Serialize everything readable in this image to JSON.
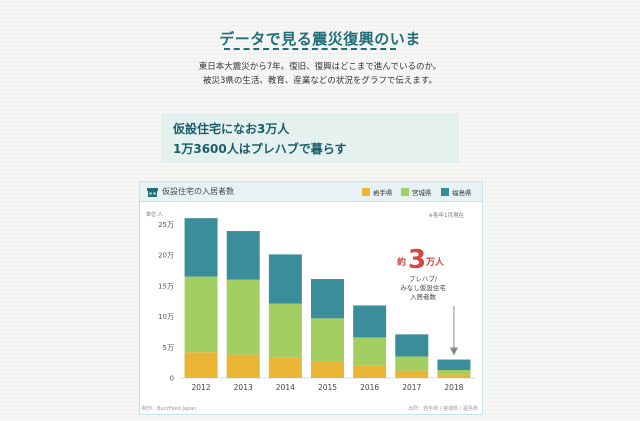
{
  "hero": {
    "title": "データで見る震災復興のいま",
    "desc_line1": "東日本大震災から7年。復旧、復興はどこまで進んでいるのか。",
    "desc_line2": "被災3県の生活、教育、産業などの状況をグラフで伝えます。"
  },
  "headline": {
    "line1": "仮設住宅になお3万人",
    "line2": "1万3600人はプレハブで暮らす"
  },
  "colors": {
    "iwate": "#e8b534",
    "miyagi": "#a3cf62",
    "fukushima": "#3a8e9c",
    "accent_red": "#d9443e",
    "teal": "#1f6e7a"
  },
  "chart_data": {
    "type": "bar",
    "stacked": true,
    "title": "仮設住宅の入居者数",
    "unit_label": "単位:人",
    "as_of": "※各年1月現在",
    "categories": [
      "2012",
      "2013",
      "2014",
      "2015",
      "2016",
      "2017",
      "2018"
    ],
    "series": [
      {
        "name": "岩手県",
        "color": "#e8b534",
        "values": [
          42000,
          38000,
          33000,
          27000,
          20000,
          12000,
          6000
        ]
      },
      {
        "name": "宮城県",
        "color": "#a3cf62",
        "values": [
          123000,
          122000,
          88000,
          70000,
          46000,
          23000,
          7000
        ]
      },
      {
        "name": "福島県",
        "color": "#3a8e9c",
        "values": [
          95000,
          79000,
          80000,
          64000,
          52000,
          36000,
          17000
        ]
      }
    ],
    "ylim": [
      0,
      270000
    ],
    "yticks": [
      0,
      50000,
      100000,
      150000,
      200000,
      250000
    ],
    "ytick_labels": [
      "0",
      "5万",
      "10万",
      "15万",
      "20万",
      "25万"
    ],
    "annotation": {
      "prefix": "約",
      "number": "3",
      "suffix": "万人",
      "line1": "プレハブ/",
      "line2": "みなし仮設住宅",
      "line3": "入居者数",
      "target_category": "2018"
    },
    "source_left": "制作：BuzzFeed Japan",
    "source_right": "出所：岩手県 / 宮城県 / 福島県"
  }
}
